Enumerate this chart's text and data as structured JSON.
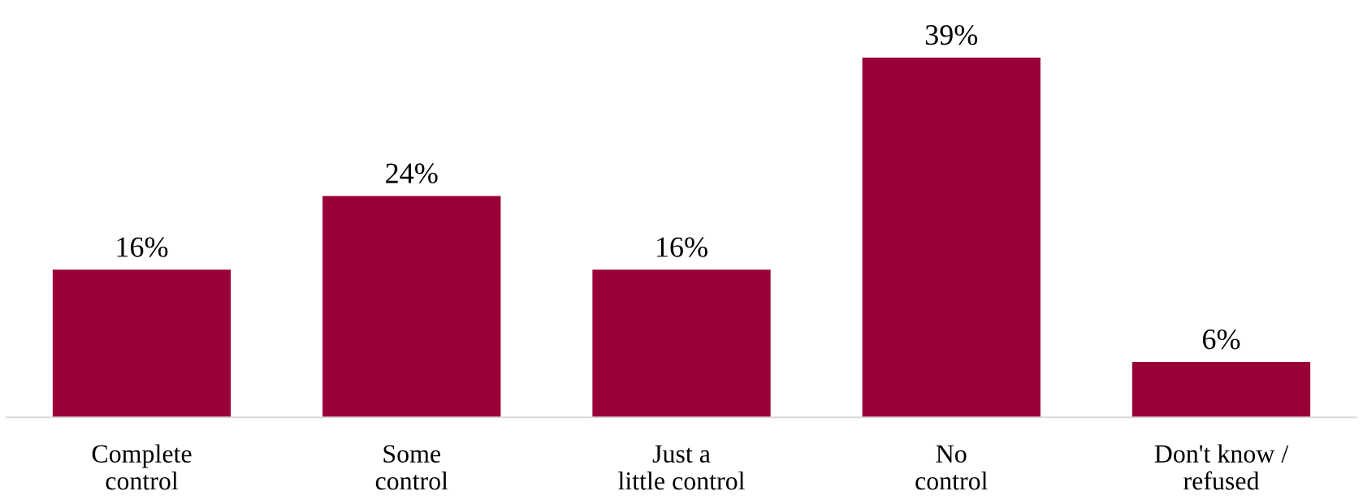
{
  "chart_data": {
    "type": "bar",
    "categories": [
      "Complete\ncontrol",
      "Some\ncontrol",
      "Just a\nlittle control",
      "No\ncontrol",
      "Don't know /\nrefused"
    ],
    "values": [
      16,
      24,
      16,
      39,
      6
    ],
    "value_labels": [
      "16%",
      "24%",
      "16%",
      "39%",
      "6%"
    ],
    "color": "#990038"
  }
}
